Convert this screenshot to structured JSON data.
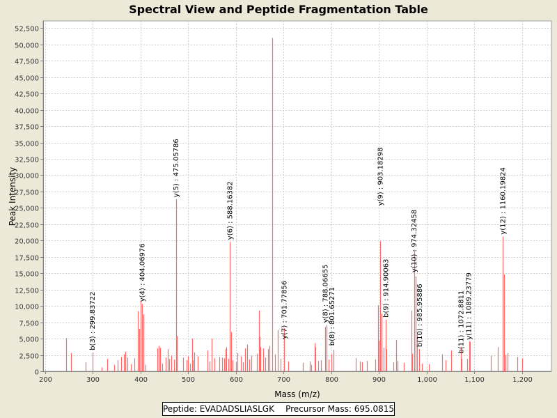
{
  "chart_data": {
    "type": "bar",
    "title": "Spectral View and Peptide Fragmentation Table",
    "xlabel": "Mass (m/z)",
    "ylabel": "Peak Intensity",
    "xlim": [
      196,
      1262
    ],
    "ylim": [
      0,
      53600
    ],
    "x_ticks": [
      200,
      300,
      400,
      500,
      600,
      700,
      800,
      900,
      1000,
      1100,
      1200
    ],
    "x_tick_labels": [
      "200",
      "300",
      "400",
      "500",
      "600",
      "700",
      "800",
      "900",
      "1,000",
      "1,100",
      "1,200"
    ],
    "y_ticks": [
      0,
      2500,
      5000,
      7500,
      10000,
      12500,
      15000,
      17500,
      20000,
      22500,
      25000,
      27500,
      30000,
      32500,
      35000,
      37500,
      40000,
      42500,
      45000,
      47500,
      50000,
      52500
    ],
    "y_tick_labels": [
      "0",
      "2,500",
      "5,000",
      "7,500",
      "10,000",
      "12,500",
      "15,000",
      "17,500",
      "20,000",
      "22,500",
      "25,000",
      "27,500",
      "30,000",
      "32,500",
      "35,000",
      "37,500",
      "40,000",
      "42,500",
      "45,000",
      "47,500",
      "50,000",
      "52,500"
    ],
    "grid": true,
    "peak_color": "#ff6a6a",
    "peaks": [
      [
        244,
        5100
      ],
      [
        254,
        2800
      ],
      [
        285,
        1400
      ],
      [
        300,
        2900
      ],
      [
        318,
        600
      ],
      [
        330,
        1900
      ],
      [
        345,
        1000
      ],
      [
        352,
        1700
      ],
      [
        360,
        2200
      ],
      [
        365,
        2600
      ],
      [
        368,
        3000
      ],
      [
        372,
        2100
      ],
      [
        380,
        1100
      ],
      [
        387,
        2000
      ],
      [
        395,
        9200
      ],
      [
        397,
        6500
      ],
      [
        401,
        10800
      ],
      [
        404,
        10300
      ],
      [
        406,
        8700
      ],
      [
        411,
        1000
      ],
      [
        436,
        3500
      ],
      [
        438,
        3900
      ],
      [
        441,
        3600
      ],
      [
        445,
        1200
      ],
      [
        453,
        2100
      ],
      [
        457,
        3400
      ],
      [
        460,
        1900
      ],
      [
        465,
        2400
      ],
      [
        470,
        1800
      ],
      [
        475,
        26300
      ],
      [
        477,
        5400
      ],
      [
        490,
        2100
      ],
      [
        497,
        1700
      ],
      [
        500,
        2300
      ],
      [
        504,
        1200
      ],
      [
        508,
        5000
      ],
      [
        510,
        1700
      ],
      [
        513,
        2900
      ],
      [
        520,
        2300
      ],
      [
        540,
        3200
      ],
      [
        545,
        1500
      ],
      [
        550,
        5000
      ],
      [
        555,
        2000
      ],
      [
        565,
        2200
      ],
      [
        572,
        2100
      ],
      [
        575,
        2000
      ],
      [
        578,
        3400
      ],
      [
        580,
        3700
      ],
      [
        584,
        1900
      ],
      [
        588,
        19800
      ],
      [
        590,
        6000
      ],
      [
        593,
        1700
      ],
      [
        600,
        1400
      ],
      [
        604,
        2800
      ],
      [
        610,
        2300
      ],
      [
        615,
        1400
      ],
      [
        620,
        3500
      ],
      [
        624,
        4100
      ],
      [
        628,
        1800
      ],
      [
        633,
        2400
      ],
      [
        644,
        2700
      ],
      [
        648,
        9300
      ],
      [
        650,
        5300
      ],
      [
        652,
        3700
      ],
      [
        657,
        3500
      ],
      [
        662,
        2100
      ],
      [
        668,
        3400
      ],
      [
        670,
        3900
      ],
      [
        677,
        51000
      ],
      [
        683,
        2600
      ],
      [
        688,
        6300
      ],
      [
        694,
        1900
      ],
      [
        701,
        6600
      ],
      [
        710,
        1500
      ],
      [
        740,
        1300
      ],
      [
        755,
        1500
      ],
      [
        758,
        1000
      ],
      [
        765,
        4300
      ],
      [
        767,
        3700
      ],
      [
        773,
        1600
      ],
      [
        778,
        1700
      ],
      [
        788,
        6800
      ],
      [
        790,
        7100
      ],
      [
        795,
        1800
      ],
      [
        801,
        2600
      ],
      [
        805,
        3300
      ],
      [
        852,
        2000
      ],
      [
        860,
        1500
      ],
      [
        865,
        1400
      ],
      [
        875,
        1600
      ],
      [
        892,
        1800
      ],
      [
        898,
        10100
      ],
      [
        900,
        4700
      ],
      [
        903,
        19900
      ],
      [
        906,
        8800
      ],
      [
        910,
        3600
      ],
      [
        914,
        7900
      ],
      [
        916,
        3400
      ],
      [
        930,
        1400
      ],
      [
        937,
        4800
      ],
      [
        940,
        1600
      ],
      [
        953,
        1300
      ],
      [
        968,
        9300
      ],
      [
        970,
        2700
      ],
      [
        974,
        18600
      ],
      [
        977,
        14500
      ],
      [
        980,
        5600
      ],
      [
        985,
        3400
      ],
      [
        990,
        1200
      ],
      [
        1005,
        1100
      ],
      [
        1033,
        2600
      ],
      [
        1040,
        1700
      ],
      [
        1052,
        3200
      ],
      [
        1072,
        3700
      ],
      [
        1074,
        1900
      ],
      [
        1086,
        1900
      ],
      [
        1089,
        4600
      ],
      [
        1091,
        4500
      ],
      [
        1135,
        2400
      ],
      [
        1150,
        3700
      ],
      [
        1160,
        20600
      ],
      [
        1162,
        14800
      ],
      [
        1165,
        2500
      ],
      [
        1170,
        2800
      ],
      [
        1190,
        2200
      ],
      [
        1200,
        2000
      ]
    ],
    "annotations": [
      {
        "label": "b(3) : 299.83722",
        "x": 299.8,
        "base": 2900
      },
      {
        "label": "y(4) : 404.06976",
        "x": 404.1,
        "base": 10300
      },
      {
        "label": "y(5) : 475.05786",
        "x": 475.1,
        "base": 26300
      },
      {
        "label": "y(6) : 588.16382",
        "x": 588.2,
        "base": 19800
      },
      {
        "label": "y(7) : 701.77856",
        "x": 701.8,
        "base": 4600
      },
      {
        "label": "y(8) : 788.06655",
        "x": 788.1,
        "base": 7100
      },
      {
        "label": "b(8) : 801.65271",
        "x": 801.7,
        "base": 3600
      },
      {
        "label": "y(9) : 903.18298",
        "x": 903.2,
        "base": 25000
      },
      {
        "label": "b(9) : 914.90063",
        "x": 914.9,
        "base": 7900
      },
      {
        "label": "y(10) : 974.32458",
        "x": 974.3,
        "base": 14800
      },
      {
        "label": "b(10) : 985.95886",
        "x": 985.96,
        "base": 3400
      },
      {
        "label": "b(11) : 1072.8811",
        "x": 1072.9,
        "base": 2400
      },
      {
        "label": "y(11) : 1089.23779",
        "x": 1089.2,
        "base": 4500
      },
      {
        "label": "y(12) : 1160.19824",
        "x": 1160.2,
        "base": 20600
      }
    ]
  },
  "legend": {
    "peptide_label": "Peptide: EVADADSLIASLGK",
    "precursor_label": "Precursor Mass: 695.0815"
  }
}
